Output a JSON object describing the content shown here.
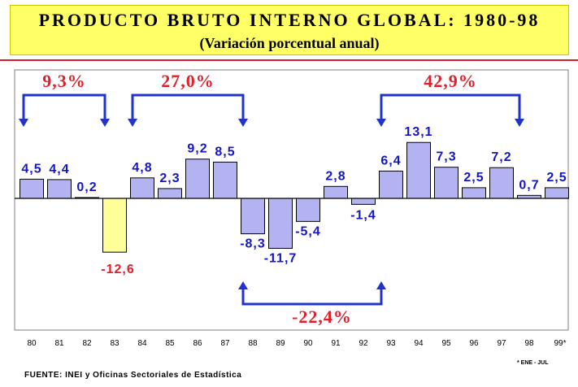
{
  "header": {
    "title": "PRODUCTO BRUTO INTERNO GLOBAL: 1980-98",
    "subtitle": "(Variación porcentual anual)"
  },
  "chart_data": {
    "type": "bar",
    "title": "PRODUCTO BRUTO INTERNO GLOBAL: 1980-98",
    "subtitle": "(Variación porcentual anual)",
    "categories": [
      "80",
      "81",
      "82",
      "83",
      "84",
      "85",
      "86",
      "87",
      "88",
      "89",
      "90",
      "91",
      "92",
      "93",
      "94",
      "95",
      "96",
      "97",
      "98",
      "99*"
    ],
    "values": [
      4.5,
      4.4,
      0.2,
      -12.6,
      4.8,
      2.3,
      9.2,
      8.5,
      -8.3,
      -11.7,
      -5.4,
      2.8,
      -1.4,
      6.4,
      13.1,
      7.3,
      2.5,
      7.2,
      0.7,
      2.5
    ],
    "data_labels": [
      "4,5",
      "4,4",
      "0,2",
      "-12,6",
      "4,8",
      "2,3",
      "9,2",
      "8,5",
      "-8,3",
      "-11,7",
      "-5,4",
      "2,8",
      "-1,4",
      "6,4",
      "13,1",
      "7,3",
      "2,5",
      "7,2",
      "0,7",
      "2,5"
    ],
    "highlight_index": 3,
    "ylim": [
      -18,
      17
    ],
    "grid": false,
    "colors": {
      "bar": "#b3b3f2",
      "highlight_bar": "#ffff99",
      "bar_stroke": "#000000",
      "label": "#1515c8",
      "highlight_label": "#e01f2a",
      "bracket": "#2233cc",
      "bracket_text": "#e01f2a"
    },
    "annotations": [
      {
        "text": "9,3%",
        "from": 0,
        "to": 3,
        "direction": "down"
      },
      {
        "text": "27,0%",
        "from": 4,
        "to": 8,
        "direction": "down"
      },
      {
        "text": "42,9%",
        "from": 13,
        "to": 18,
        "direction": "down"
      },
      {
        "text": "-22,4%",
        "from": 8,
        "to": 13,
        "direction": "up"
      }
    ]
  },
  "footer": {
    "source": "FUENTE: INEI y Oficinas Sectoriales de Estadística",
    "note": "* ENE - JUL"
  }
}
